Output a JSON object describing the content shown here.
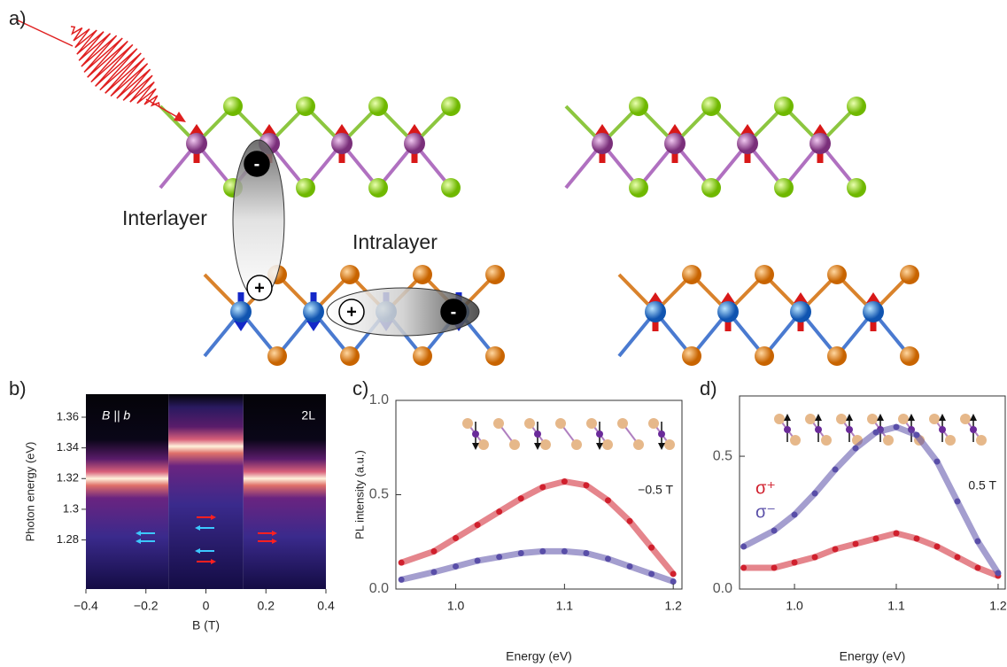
{
  "panel_labels": [
    "a)",
    "b)",
    "c)",
    "d)"
  ],
  "diagram": {
    "interlayer": "Interlayer",
    "intralayer": "Intralayer",
    "charges": [
      "-",
      "+",
      "+",
      "-"
    ]
  },
  "chart_data": [
    {
      "type": "heatmap",
      "xlabel": "B (T)",
      "ylabel": "Photon energy (eV)",
      "annotations": [
        "B || b",
        "2L"
      ],
      "xlim": [
        -0.4,
        0.4
      ],
      "xticks": [
        {
          "value": -0.4,
          "label": "−0.4"
        },
        {
          "value": -0.2,
          "label": "−0.2"
        },
        0,
        0.2,
        0.4
      ],
      "ylim": [
        1.248,
        1.375
      ],
      "yticks": [
        1.28,
        1.3,
        1.32,
        1.34,
        1.36
      ],
      "regions": [
        {
          "x": [
            -0.4,
            -0.125
          ],
          "peak": 1.32
        },
        {
          "x": [
            -0.125,
            0.125
          ],
          "peak": 1.341
        },
        {
          "x": [
            0.125,
            0.4
          ],
          "peak": 1.32
        }
      ]
    },
    {
      "type": "scatter",
      "xlabel": "Energy (eV)",
      "ylabel": "PL intensity (a.u.)",
      "annotations": [
        "−0.5 T"
      ],
      "xlim": [
        0.945,
        1.208
      ],
      "xticks": [
        {
          "value": 1,
          "label": "1.0"
        },
        1.1,
        1.2
      ],
      "ylim": [
        0,
        1
      ],
      "yticks": [
        {
          "value": 0,
          "label": "0.0"
        },
        0.5,
        {
          "value": 1,
          "label": "1.0"
        }
      ],
      "x": [
        0.95,
        0.98,
        1.0,
        1.02,
        1.04,
        1.06,
        1.08,
        1.1,
        1.12,
        1.14,
        1.16,
        1.18,
        1.2
      ],
      "series": [
        {
          "color": "#d0202e",
          "values": [
            0.14,
            0.2,
            0.27,
            0.34,
            0.41,
            0.48,
            0.54,
            0.57,
            0.55,
            0.47,
            0.36,
            0.22,
            0.08
          ]
        },
        {
          "color": "#5a4fa8",
          "values": [
            0.05,
            0.09,
            0.12,
            0.15,
            0.17,
            0.19,
            0.2,
            0.2,
            0.19,
            0.16,
            0.12,
            0.08,
            0.04
          ]
        }
      ]
    },
    {
      "type": "scatter",
      "xlabel": "Energy (eV)",
      "annotations": [
        "0.5 T"
      ],
      "xlim": [
        0.946,
        1.207
      ],
      "xticks": [
        {
          "value": 1,
          "label": "1.0"
        },
        1.1,
        1.2
      ],
      "ylim": [
        0,
        0.727
      ],
      "yticks": [
        {
          "value": 0,
          "label": "0.0"
        },
        0.5
      ],
      "x": [
        0.95,
        0.98,
        1.0,
        1.02,
        1.04,
        1.06,
        1.08,
        1.1,
        1.12,
        1.14,
        1.16,
        1.18,
        1.2
      ],
      "legend": "top-left",
      "series": [
        {
          "name": "σ⁺",
          "color": "#d0202e",
          "values": [
            0.08,
            0.08,
            0.1,
            0.12,
            0.15,
            0.17,
            0.19,
            0.21,
            0.19,
            0.16,
            0.12,
            0.08,
            0.05
          ]
        },
        {
          "name": "σ⁻",
          "color": "#5a4fa8",
          "values": [
            0.16,
            0.22,
            0.28,
            0.36,
            0.45,
            0.53,
            0.59,
            0.61,
            0.58,
            0.48,
            0.33,
            0.18,
            0.06
          ]
        }
      ]
    }
  ]
}
